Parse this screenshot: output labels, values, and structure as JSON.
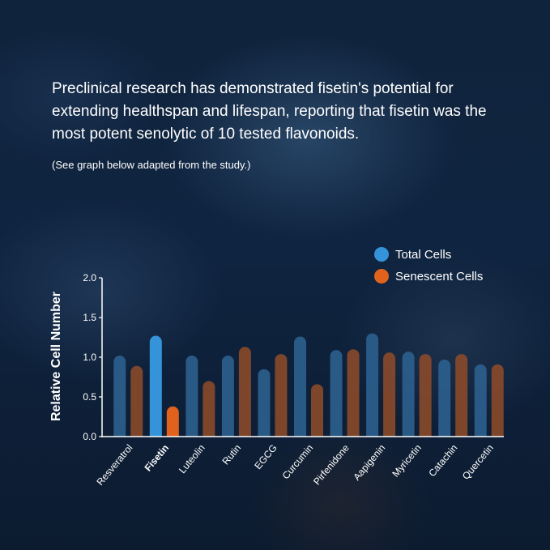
{
  "intro": {
    "text": "Preclinical research has demonstrated fisetin's potential for extending healthspan and lifespan, reporting that fisetin was the most potent senolytic of 10 tested flavonoids.",
    "note": "(See graph below adapted from the study.)"
  },
  "colors": {
    "total_muted": "#2c5f8e",
    "senescent_muted": "#8a4a2a",
    "total_highlight": "#3593d9",
    "senescent_highlight": "#e0621c"
  },
  "chart_data": {
    "type": "bar",
    "ylabel": "Relative Cell Number",
    "xlabel": "",
    "ylim": [
      0,
      2.0
    ],
    "yticks": [
      "0.0",
      "0.5",
      "1.0",
      "1.5",
      "2.0"
    ],
    "grid": false,
    "legend_position": "top-right",
    "highlight_category": "Fisetin",
    "categories": [
      "Resveratrol",
      "Fisetin",
      "Luteolin",
      "Rutin",
      "EGCG",
      "Curcumin",
      "Pirfenidone",
      "Aapigenin",
      "Myricetin",
      "Catachin",
      "Quercetin"
    ],
    "series": [
      {
        "name": "Total Cells",
        "values": [
          1.02,
          1.27,
          1.02,
          1.02,
          0.85,
          1.26,
          1.09,
          1.3,
          1.07,
          0.97,
          0.91
        ]
      },
      {
        "name": "Senescent Cells",
        "values": [
          0.89,
          0.38,
          0.7,
          1.13,
          1.04,
          0.66,
          1.1,
          1.06,
          1.04,
          1.04,
          0.91
        ]
      }
    ]
  }
}
